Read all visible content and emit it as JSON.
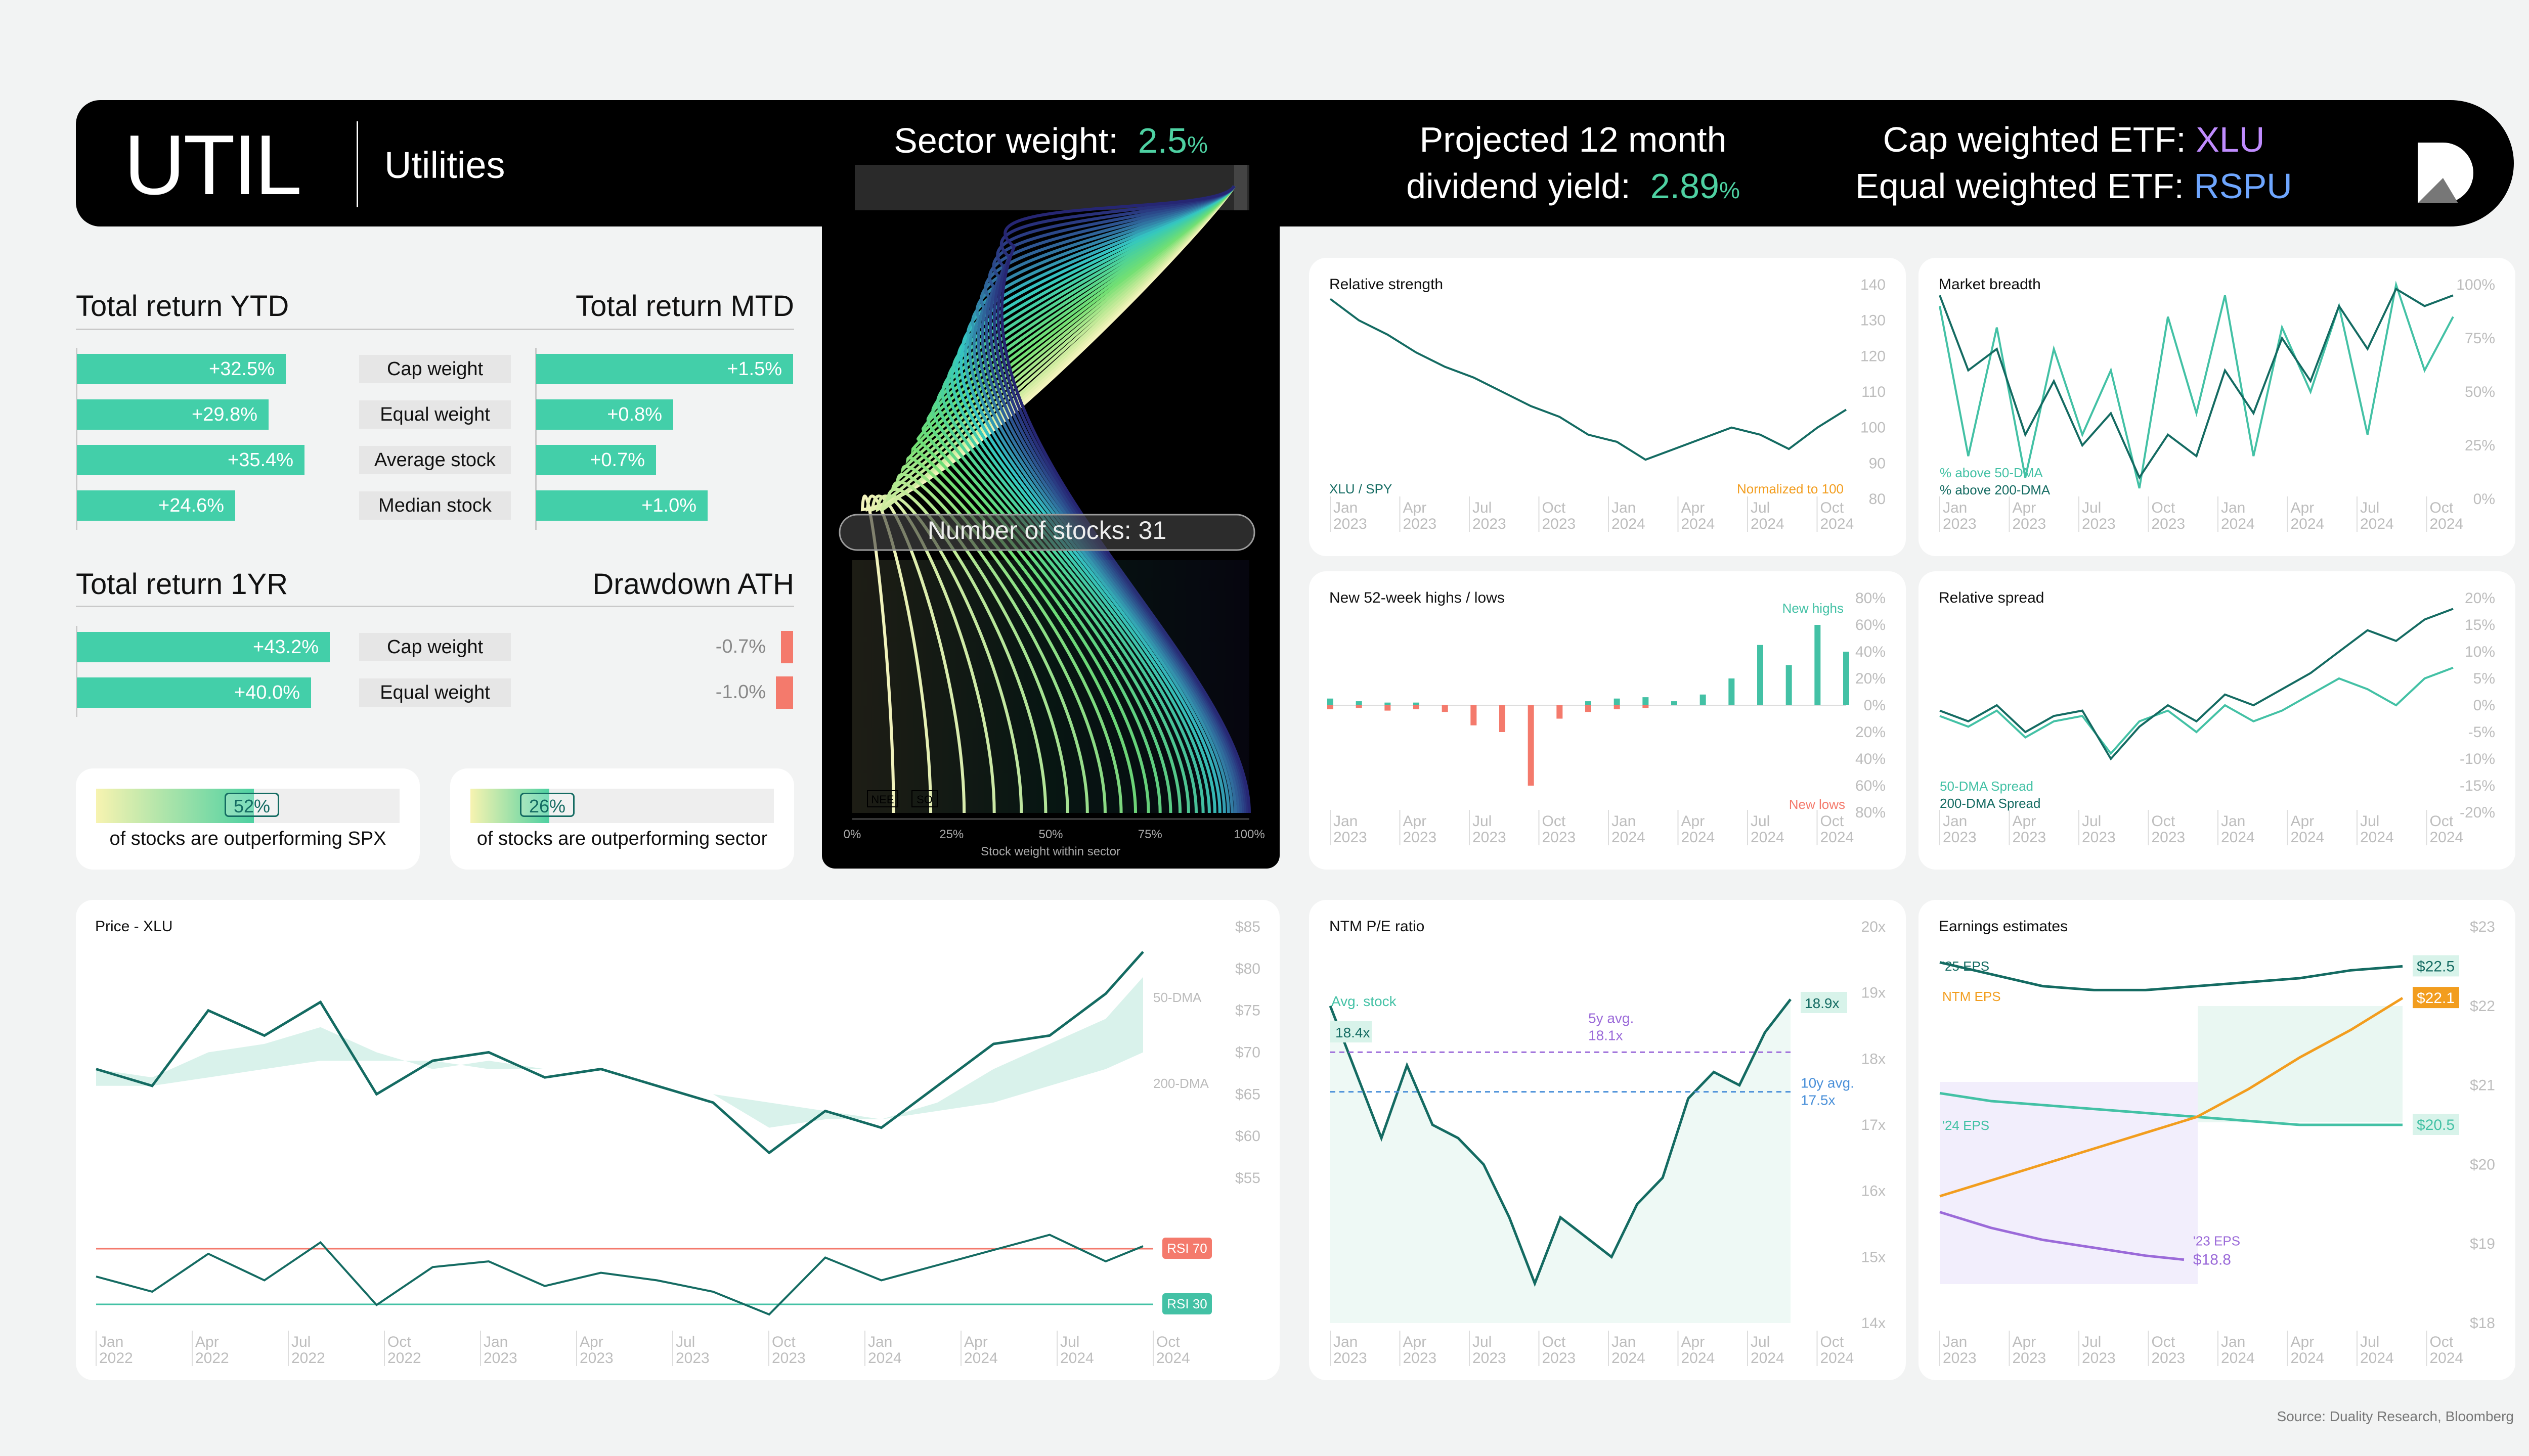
{
  "header": {
    "ticker": "UTIL",
    "sector_name": "Utilities",
    "sector_weight_label": "Sector weight:",
    "sector_weight_value": "2.5",
    "sector_weight_unit": "%",
    "yield_line1": "Projected 12 month",
    "yield_label": "dividend yield:",
    "yield_value": "2.89",
    "yield_unit": "%",
    "cap_etf_label": "Cap weighted ETF:",
    "cap_etf_value": "XLU",
    "eq_etf_label": "Equal weighted ETF:",
    "eq_etf_value": "RSPU",
    "logo": "duality-logo-icon",
    "colors": {
      "accent": "#4ed1a2",
      "cap_etf": "#c08cff",
      "eq_etf": "#6ea6ff"
    }
  },
  "returns": {
    "ytd_title": "Total return YTD",
    "mtd_title": "Total return MTD",
    "yr_title": "Total return 1YR",
    "dd_title": "Drawdown ATH",
    "rows": [
      {
        "label": "Cap weight",
        "ytd": "+32.5%",
        "ytd_v": 32.5,
        "mtd": "+1.5%",
        "mtd_v": 1.5
      },
      {
        "label": "Equal weight",
        "ytd": "+29.8%",
        "ytd_v": 29.8,
        "mtd": "+0.8%",
        "mtd_v": 0.8
      },
      {
        "label": "Average stock",
        "ytd": "+35.4%",
        "ytd_v": 35.4,
        "mtd": "+0.7%",
        "mtd_v": 0.7
      },
      {
        "label": "Median stock",
        "ytd": "+24.6%",
        "ytd_v": 24.6,
        "mtd": "+1.0%",
        "mtd_v": 1.0
      }
    ],
    "yr_rows": [
      {
        "label": "Cap weight",
        "yr": "+43.2%",
        "yr_v": 43.2,
        "dd": "-0.7%",
        "dd_v": -0.7
      },
      {
        "label": "Equal weight",
        "yr": "+40.0%",
        "yr_v": 40.0,
        "dd": "-1.0%",
        "dd_v": -1.0
      }
    ]
  },
  "outperform": [
    {
      "pct": "52%",
      "value": 0.52,
      "text": "of stocks are outperforming SPX"
    },
    {
      "pct": "26%",
      "value": 0.26,
      "text": "of stocks are outperforming sector"
    }
  ],
  "source": "Source: Duality Research, Bloomberg",
  "chart_data": [
    {
      "id": "stock-weights",
      "type": "area",
      "label": "Number of stocks: 31",
      "stock_count": 31,
      "top_stocks": [
        "NEE",
        "SO"
      ],
      "xlabel": "Stock weight within sector",
      "xticks": [
        "0%",
        "25%",
        "50%",
        "75%",
        "100%"
      ]
    },
    {
      "id": "relative-strength",
      "type": "line",
      "title": "Relative strength",
      "series_label": "XLU / SPY",
      "note": "Normalized to 100",
      "ylim": [
        80,
        140
      ],
      "yticks": [
        "140",
        "130",
        "120",
        "110",
        "100",
        "90",
        "80"
      ],
      "xticks": [
        [
          "Jan",
          "2023"
        ],
        [
          "Apr",
          "2023"
        ],
        [
          "Jul",
          "2023"
        ],
        [
          "Oct",
          "2023"
        ],
        [
          "Jan",
          "2024"
        ],
        [
          "Apr",
          "2024"
        ],
        [
          "Jul",
          "2024"
        ],
        [
          "Oct",
          "2024"
        ]
      ],
      "x": [
        2023.0,
        2023.1,
        2023.2,
        2023.3,
        2023.4,
        2023.5,
        2023.6,
        2023.7,
        2023.8,
        2023.9,
        2024.0,
        2024.1,
        2024.2,
        2024.3,
        2024.4,
        2024.5,
        2024.6,
        2024.7,
        2024.8
      ],
      "values": [
        136,
        130,
        126,
        121,
        117,
        114,
        110,
        106,
        103,
        98,
        96,
        91,
        94,
        97,
        100,
        98,
        94,
        100,
        105
      ]
    },
    {
      "id": "market-breadth",
      "type": "line",
      "title": "Market breadth",
      "ylim": [
        0,
        100
      ],
      "yticks": [
        "100%",
        "75%",
        "50%",
        "25%",
        "0%"
      ],
      "xticks": [
        [
          "Jan",
          "2023"
        ],
        [
          "Apr",
          "2023"
        ],
        [
          "Jul",
          "2023"
        ],
        [
          "Oct",
          "2023"
        ],
        [
          "Jan",
          "2024"
        ],
        [
          "Apr",
          "2024"
        ],
        [
          "Jul",
          "2024"
        ],
        [
          "Oct",
          "2024"
        ]
      ],
      "series": [
        {
          "name": "% above 50-DMA",
          "values": [
            90,
            20,
            80,
            10,
            70,
            30,
            60,
            5,
            85,
            40,
            95,
            20,
            80,
            50,
            90,
            30,
            100,
            60,
            85
          ]
        },
        {
          "name": "% above 200-DMA",
          "values": [
            95,
            60,
            70,
            30,
            55,
            25,
            40,
            10,
            30,
            20,
            60,
            40,
            75,
            55,
            90,
            70,
            98,
            90,
            95
          ]
        }
      ]
    },
    {
      "id": "highs-lows",
      "type": "bar",
      "title": "New 52-week highs / lows",
      "ylim": [
        -80,
        80
      ],
      "yticks": [
        "80%",
        "60%",
        "40%",
        "20%",
        "0%",
        "20%",
        "40%",
        "60%",
        "80%"
      ],
      "xticks": [
        [
          "Jan",
          "2023"
        ],
        [
          "Apr",
          "2023"
        ],
        [
          "Jul",
          "2023"
        ],
        [
          "Oct",
          "2023"
        ],
        [
          "Jan",
          "2024"
        ],
        [
          "Apr",
          "2024"
        ],
        [
          "Jul",
          "2024"
        ],
        [
          "Oct",
          "2024"
        ]
      ],
      "series": [
        {
          "name": "New highs",
          "values": [
            5,
            3,
            2,
            2,
            0,
            0,
            0,
            0,
            0,
            3,
            5,
            6,
            3,
            8,
            20,
            45,
            30,
            60,
            40
          ]
        },
        {
          "name": "New lows",
          "values": [
            -3,
            -2,
            -4,
            -3,
            -5,
            -15,
            -20,
            -60,
            -10,
            -5,
            -3,
            -2,
            0,
            0,
            0,
            0,
            0,
            0,
            0
          ]
        }
      ]
    },
    {
      "id": "relative-spread",
      "type": "line",
      "title": "Relative spread",
      "ylim": [
        -20,
        20
      ],
      "yticks": [
        "20%",
        "15%",
        "10%",
        "5%",
        "0%",
        "-5%",
        "-10%",
        "-15%",
        "-20%"
      ],
      "xticks": [
        [
          "Jan",
          "2023"
        ],
        [
          "Apr",
          "2023"
        ],
        [
          "Jul",
          "2023"
        ],
        [
          "Oct",
          "2023"
        ],
        [
          "Jan",
          "2024"
        ],
        [
          "Apr",
          "2024"
        ],
        [
          "Jul",
          "2024"
        ],
        [
          "Oct",
          "2024"
        ]
      ],
      "series": [
        {
          "name": "50-DMA Spread",
          "values": [
            -2,
            -4,
            -1,
            -6,
            -3,
            -2,
            -9,
            -3,
            -1,
            -5,
            0,
            -3,
            -1,
            2,
            5,
            3,
            0,
            5,
            7
          ]
        },
        {
          "name": "200-DMA Spread",
          "values": [
            -1,
            -3,
            0,
            -5,
            -2,
            -1,
            -10,
            -4,
            0,
            -3,
            2,
            0,
            3,
            6,
            10,
            14,
            12,
            16,
            18
          ]
        }
      ]
    },
    {
      "id": "price",
      "type": "line",
      "title": "Price - XLU",
      "ylim": [
        50,
        85
      ],
      "yticks": [
        "$85",
        "$80",
        "$75",
        "$70",
        "$65",
        "$60",
        "$55"
      ],
      "xticks": [
        [
          "Jan",
          "2022"
        ],
        [
          "Apr",
          "2022"
        ],
        [
          "Jul",
          "2022"
        ],
        [
          "Oct",
          "2022"
        ],
        [
          "Jan",
          "2023"
        ],
        [
          "Apr",
          "2023"
        ],
        [
          "Jul",
          "2023"
        ],
        [
          "Oct",
          "2023"
        ],
        [
          "Jan",
          "2024"
        ],
        [
          "Apr",
          "2024"
        ],
        [
          "Jul",
          "2024"
        ],
        [
          "Oct",
          "2024"
        ]
      ],
      "x": [
        2022.0,
        2022.15,
        2022.3,
        2022.45,
        2022.6,
        2022.75,
        2022.9,
        2023.05,
        2023.2,
        2023.35,
        2023.5,
        2023.65,
        2023.8,
        2023.95,
        2024.1,
        2024.25,
        2024.4,
        2024.55,
        2024.7,
        2024.8
      ],
      "series": [
        {
          "name": "XLU",
          "values": [
            68,
            66,
            75,
            72,
            76,
            65,
            69,
            70,
            67,
            68,
            66,
            64,
            58,
            63,
            61,
            66,
            71,
            72,
            77,
            82
          ]
        },
        {
          "name": "50-DMA",
          "values": [
            68,
            67,
            70,
            71,
            73,
            70,
            68,
            69,
            68,
            67,
            66,
            65,
            61,
            62,
            62,
            64,
            68,
            71,
            74,
            79
          ]
        },
        {
          "name": "200-DMA",
          "values": [
            66,
            66,
            67,
            68,
            69,
            69,
            69,
            68,
            68,
            67,
            66,
            65,
            64,
            63,
            62,
            63,
            64,
            66,
            68,
            70
          ]
        }
      ],
      "annotations": [
        "50-DMA",
        "200-DMA"
      ],
      "rsi": {
        "label_70": "RSI 70",
        "label_30": "RSI 30",
        "values": [
          50,
          42,
          62,
          48,
          68,
          35,
          55,
          58,
          45,
          52,
          48,
          42,
          30,
          60,
          48,
          56,
          64,
          72,
          58,
          66
        ]
      }
    },
    {
      "id": "pe-ratio",
      "type": "line",
      "title": "NTM P/E ratio",
      "ylim": [
        14,
        20
      ],
      "yticks": [
        "20x",
        "19x",
        "18x",
        "17x",
        "16x",
        "15x",
        "14x"
      ],
      "xticks": [
        [
          "Jan",
          "2023"
        ],
        [
          "Apr",
          "2023"
        ],
        [
          "Jul",
          "2023"
        ],
        [
          "Oct",
          "2023"
        ],
        [
          "Jan",
          "2024"
        ],
        [
          "Apr",
          "2024"
        ],
        [
          "Jul",
          "2024"
        ],
        [
          "Oct",
          "2024"
        ]
      ],
      "x": [
        2023.0,
        2023.1,
        2023.2,
        2023.3,
        2023.4,
        2023.5,
        2023.6,
        2023.7,
        2023.8,
        2023.9,
        2024.0,
        2024.1,
        2024.2,
        2024.3,
        2024.4,
        2024.5,
        2024.6,
        2024.7,
        2024.8
      ],
      "values": [
        18.8,
        17.8,
        16.8,
        17.9,
        17.0,
        16.8,
        16.4,
        15.6,
        14.6,
        15.6,
        15.3,
        15.0,
        15.8,
        16.2,
        17.4,
        17.8,
        17.6,
        18.4,
        18.9
      ],
      "current_label": "18.9x",
      "annotations": [
        {
          "label": "Avg. stock",
          "value": "18.4x"
        },
        {
          "label": "5y avg.",
          "value": "18.1x",
          "y": 18.1
        },
        {
          "label": "10y avg.",
          "value": "17.5x",
          "y": 17.5
        }
      ]
    },
    {
      "id": "earnings",
      "type": "line",
      "title": "Earnings estimates",
      "ylim": [
        18,
        23
      ],
      "yticks": [
        "$23",
        "$22",
        "$21",
        "$20",
        "$19",
        "$18"
      ],
      "xticks": [
        [
          "Jan",
          "2023"
        ],
        [
          "Apr",
          "2023"
        ],
        [
          "Jul",
          "2023"
        ],
        [
          "Oct",
          "2023"
        ],
        [
          "Jan",
          "2024"
        ],
        [
          "Apr",
          "2024"
        ],
        [
          "Jul",
          "2024"
        ],
        [
          "Oct",
          "2024"
        ]
      ],
      "series": [
        {
          "name": "'25 EPS",
          "x": [
            2023.0,
            2023.2,
            2023.4,
            2023.6,
            2023.8,
            2024.0,
            2024.2,
            2024.4,
            2024.6,
            2024.8
          ],
          "values": [
            22.55,
            22.4,
            22.25,
            22.2,
            22.2,
            22.25,
            22.3,
            22.35,
            22.45,
            22.5
          ],
          "label": "$22.5"
        },
        {
          "name": "'24 EPS",
          "x": [
            2023.0,
            2023.2,
            2023.4,
            2023.6,
            2023.8,
            2024.0,
            2024.2,
            2024.4,
            2024.6,
            2024.8
          ],
          "values": [
            20.9,
            20.8,
            20.75,
            20.7,
            20.65,
            20.6,
            20.55,
            20.5,
            20.5,
            20.5
          ],
          "label": "$20.5"
        },
        {
          "name": "NTM EPS",
          "x": [
            2023.0,
            2023.2,
            2023.4,
            2023.6,
            2023.8,
            2024.0,
            2024.2,
            2024.4,
            2024.6,
            2024.8
          ],
          "values": [
            19.6,
            19.8,
            20.0,
            20.2,
            20.4,
            20.6,
            20.95,
            21.35,
            21.7,
            22.1
          ],
          "label": "$22.1"
        },
        {
          "name": "'23 EPS",
          "x": [
            2023.0,
            2023.2,
            2023.4,
            2023.6,
            2023.8,
            2023.95
          ],
          "values": [
            19.4,
            19.2,
            19.05,
            18.95,
            18.85,
            18.8
          ],
          "label": "$18.8"
        }
      ],
      "colors": {
        "eps25": "#146b62",
        "eps24": "#43c1a5",
        "ntm": "#f29d1e",
        "eps23": "#9b6ad9"
      }
    }
  ]
}
